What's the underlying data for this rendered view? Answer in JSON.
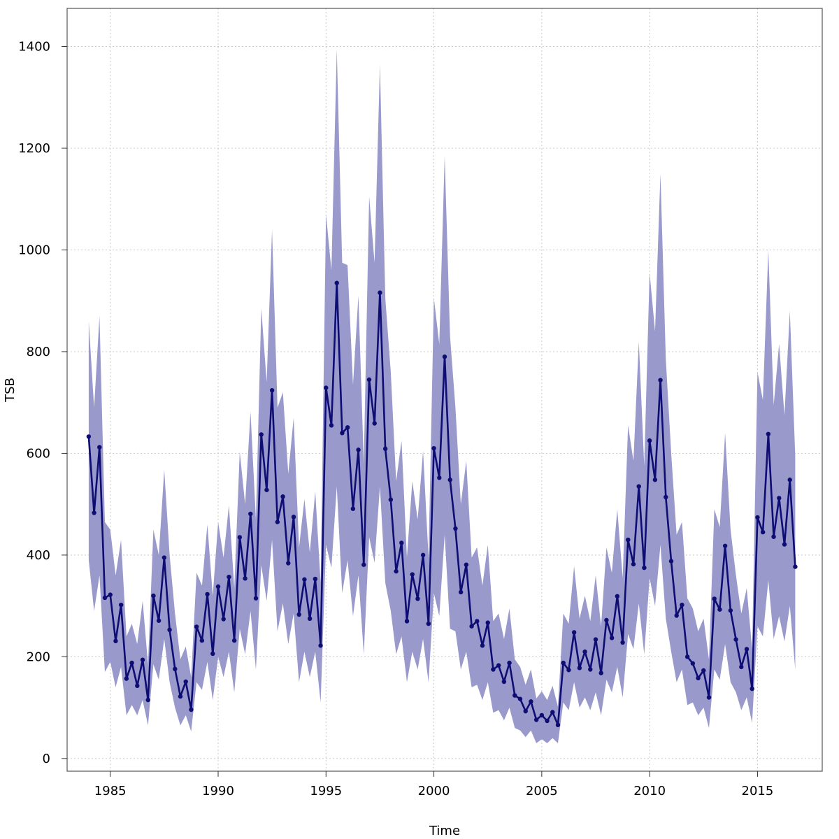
{
  "chart_data": {
    "type": "line",
    "title": "",
    "xlabel": "Time",
    "ylabel": "TSB",
    "xlim": [
      1983.0,
      2018.0
    ],
    "ylim": [
      -25,
      1475
    ],
    "xticks": [
      1985,
      1990,
      1995,
      2000,
      2005,
      2010,
      2015
    ],
    "xtick_labels": [
      "1985",
      "1990",
      "1995",
      "2000",
      "2005",
      "2010",
      "2015"
    ],
    "yticks": [
      0,
      200,
      400,
      600,
      800,
      1000,
      1200,
      1400
    ],
    "ytick_labels": [
      "0",
      "200",
      "400",
      "600",
      "800",
      "1000",
      "1200",
      "1400"
    ],
    "grid": true,
    "colors": {
      "line": "#0d0d73",
      "band": "#9999cc",
      "grid": "#c8c8c8",
      "frame": "#555555"
    },
    "series": [
      {
        "name": "TSB",
        "x_start": 1984.0,
        "x_step": 0.25,
        "values": [
          633,
          483,
          612,
          316,
          322,
          231,
          302,
          157,
          188,
          143,
          194,
          115,
          320,
          271,
          395,
          253,
          176,
          122,
          151,
          96,
          259,
          232,
          323,
          206,
          338,
          274,
          357,
          232,
          435,
          354,
          481,
          315,
          637,
          528,
          724,
          465,
          515,
          384,
          475,
          283,
          352,
          275,
          353,
          222,
          729,
          655,
          935,
          640,
          651,
          491,
          607,
          381,
          745,
          659,
          916,
          609,
          509,
          368,
          424,
          270,
          362,
          314,
          400,
          265,
          610,
          552,
          790,
          548,
          452,
          327,
          381,
          260,
          270,
          222,
          267,
          175,
          183,
          151,
          188,
          124,
          117,
          93,
          112,
          76,
          85,
          74,
          91,
          66,
          188,
          174,
          248,
          178,
          210,
          175,
          234,
          168,
          272,
          237,
          319,
          228,
          430,
          382,
          535,
          375,
          625,
          548,
          744,
          514,
          388,
          281,
          302,
          200,
          187,
          158,
          173,
          120,
          314,
          293,
          418,
          291,
          234,
          180,
          215,
          137,
          474,
          445,
          638,
          436,
          512,
          421,
          548,
          377
        ]
      }
    ],
    "band": {
      "name": "confidence interval",
      "upper": [
        860,
        690,
        870,
        465,
        450,
        360,
        430,
        240,
        265,
        225,
        310,
        185,
        450,
        400,
        568,
        400,
        285,
        195,
        220,
        160,
        365,
        340,
        460,
        320,
        465,
        395,
        498,
        335,
        603,
        500,
        682,
        470,
        885,
        740,
        1040,
        690,
        720,
        560,
        670,
        415,
        510,
        405,
        525,
        345,
        1070,
        960,
        1395,
        975,
        970,
        735,
        910,
        580,
        1105,
        975,
        1365,
        905,
        760,
        545,
        625,
        395,
        545,
        470,
        605,
        395,
        905,
        815,
        1185,
        830,
        690,
        500,
        585,
        395,
        415,
        340,
        420,
        270,
        285,
        235,
        295,
        195,
        180,
        145,
        175,
        118,
        132,
        115,
        143,
        102,
        285,
        265,
        378,
        275,
        320,
        270,
        360,
        260,
        415,
        365,
        490,
        355,
        655,
        585,
        820,
        575,
        955,
        840,
        1150,
        785,
        600,
        440,
        465,
        315,
        295,
        250,
        275,
        195,
        490,
        455,
        640,
        450,
        360,
        285,
        335,
        215,
        760,
        705,
        1000,
        695,
        815,
        675,
        880,
        595
      ],
      "lower": [
        390,
        290,
        360,
        170,
        190,
        140,
        180,
        85,
        105,
        85,
        115,
        65,
        185,
        155,
        235,
        150,
        100,
        65,
        85,
        53,
        150,
        135,
        190,
        115,
        200,
        160,
        210,
        130,
        255,
        205,
        290,
        175,
        380,
        310,
        430,
        250,
        305,
        225,
        285,
        150,
        210,
        160,
        210,
        110,
        420,
        375,
        535,
        325,
        390,
        280,
        360,
        205,
        435,
        385,
        535,
        345,
        290,
        205,
        240,
        150,
        210,
        175,
        235,
        150,
        325,
        280,
        440,
        255,
        250,
        175,
        210,
        140,
        145,
        115,
        150,
        90,
        95,
        75,
        100,
        60,
        55,
        42,
        55,
        30,
        38,
        30,
        40,
        30,
        110,
        95,
        150,
        100,
        120,
        95,
        130,
        85,
        155,
        130,
        180,
        120,
        245,
        215,
        305,
        205,
        355,
        300,
        420,
        275,
        210,
        150,
        175,
        105,
        110,
        85,
        100,
        60,
        175,
        155,
        225,
        150,
        130,
        95,
        120,
        70,
        260,
        240,
        350,
        235,
        280,
        230,
        300,
        175
      ]
    }
  }
}
